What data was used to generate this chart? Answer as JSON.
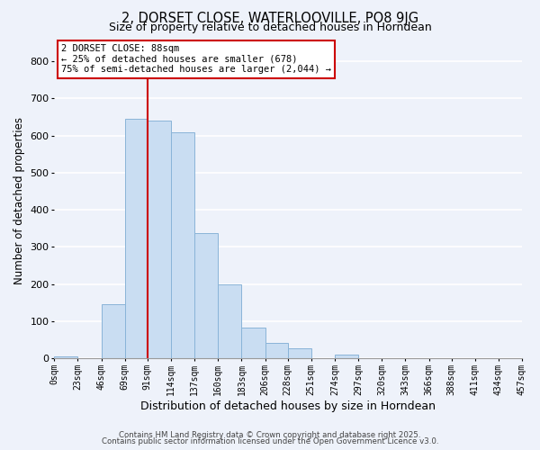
{
  "title": "2, DORSET CLOSE, WATERLOOVILLE, PO8 9JG",
  "subtitle": "Size of property relative to detached houses in Horndean",
  "xlabel": "Distribution of detached houses by size in Horndean",
  "ylabel": "Number of detached properties",
  "bar_edges": [
    0,
    23,
    46,
    69,
    91,
    114,
    137,
    160,
    183,
    206,
    228,
    251,
    274,
    297,
    320,
    343,
    366,
    388,
    411,
    434,
    457
  ],
  "bar_heights": [
    5,
    0,
    145,
    645,
    640,
    610,
    338,
    200,
    83,
    42,
    27,
    0,
    10,
    0,
    0,
    0,
    0,
    0,
    0,
    0
  ],
  "bar_color": "#c9ddf2",
  "bar_edge_color": "#8ab4d8",
  "tick_labels": [
    "0sqm",
    "23sqm",
    "46sqm",
    "69sqm",
    "91sqm",
    "114sqm",
    "137sqm",
    "160sqm",
    "183sqm",
    "206sqm",
    "228sqm",
    "251sqm",
    "274sqm",
    "297sqm",
    "320sqm",
    "343sqm",
    "366sqm",
    "388sqm",
    "411sqm",
    "434sqm",
    "457sqm"
  ],
  "ylim": [
    0,
    850
  ],
  "yticks": [
    0,
    100,
    200,
    300,
    400,
    500,
    600,
    700,
    800
  ],
  "vline_x": 91,
  "vline_color": "#cc0000",
  "annotation_title": "2 DORSET CLOSE: 88sqm",
  "annotation_line2": "← 25% of detached houses are smaller (678)",
  "annotation_line3": "75% of semi-detached houses are larger (2,044) →",
  "background_color": "#eef2fa",
  "grid_color": "#ffffff",
  "footer_line1": "Contains HM Land Registry data © Crown copyright and database right 2025.",
  "footer_line2": "Contains public sector information licensed under the Open Government Licence v3.0."
}
